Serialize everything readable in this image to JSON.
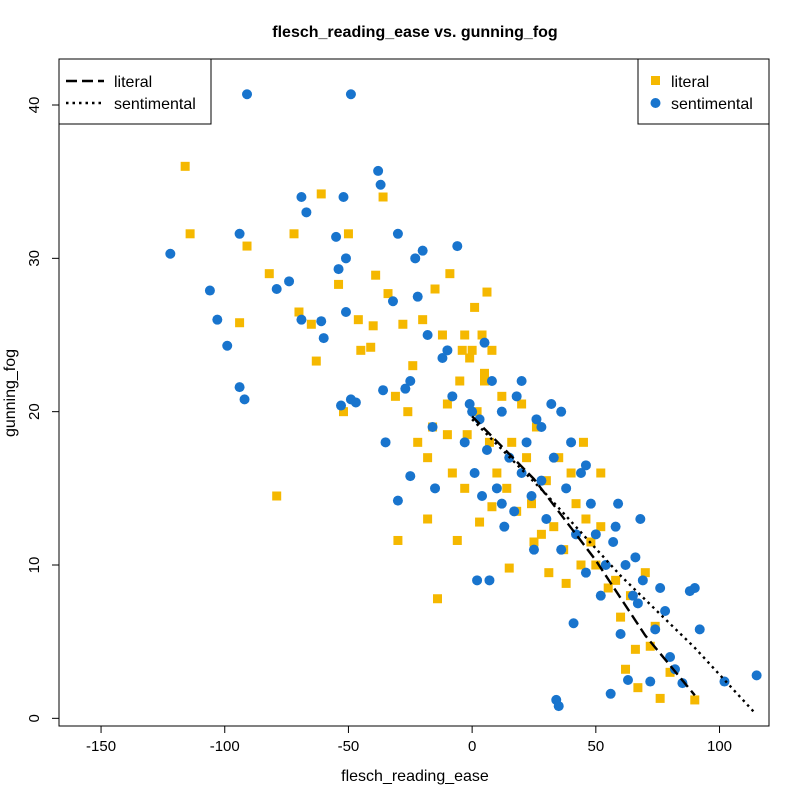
{
  "chart_data": {
    "type": "scatter",
    "title": "flesch_reading_ease vs. gunning_fog",
    "xlabel": "flesch_reading_ease",
    "ylabel": "gunning_fog",
    "xlim": [
      -167,
      120
    ],
    "ylim": [
      -0.5,
      43
    ],
    "xticks": [
      -150,
      -100,
      -50,
      0,
      50,
      100
    ],
    "yticks": [
      0,
      10,
      20,
      30,
      40
    ],
    "grid": false,
    "point_legend_position": "top-right",
    "line_legend_position": "top-left",
    "series": [
      {
        "name": "literal",
        "marker": "square",
        "color": "#F5B800",
        "points": [
          [
            -116,
            36
          ],
          [
            -114,
            31.6
          ],
          [
            -94,
            25.8
          ],
          [
            -91,
            30.8
          ],
          [
            -82,
            29
          ],
          [
            -79,
            14.5
          ],
          [
            -72,
            31.6
          ],
          [
            -70,
            26.5
          ],
          [
            -65,
            25.7
          ],
          [
            -63,
            23.3
          ],
          [
            -61,
            34.2
          ],
          [
            -54,
            28.3
          ],
          [
            -52,
            20
          ],
          [
            -50,
            31.6
          ],
          [
            -46,
            26
          ],
          [
            -45,
            24
          ],
          [
            -41,
            24.2
          ],
          [
            -40,
            25.6
          ],
          [
            -39,
            28.9
          ],
          [
            -36,
            34
          ],
          [
            -34,
            27.7
          ],
          [
            -31,
            21
          ],
          [
            -30,
            11.6
          ],
          [
            -28,
            25.7
          ],
          [
            -26,
            20
          ],
          [
            -24,
            23
          ],
          [
            -22,
            18
          ],
          [
            -20,
            26
          ],
          [
            -18,
            17
          ],
          [
            -16,
            19
          ],
          [
            -15,
            28
          ],
          [
            -14,
            7.8
          ],
          [
            -12,
            25
          ],
          [
            -10,
            20.5
          ],
          [
            -9,
            29
          ],
          [
            -8,
            16
          ],
          [
            -6,
            11.6
          ],
          [
            -5,
            22
          ],
          [
            -4,
            24
          ],
          [
            -3,
            25
          ],
          [
            -2,
            18.5
          ],
          [
            -1,
            23.5
          ],
          [
            0,
            24
          ],
          [
            1,
            26.8
          ],
          [
            2,
            20
          ],
          [
            3,
            12.8
          ],
          [
            4,
            25
          ],
          [
            5,
            22
          ],
          [
            6,
            27.8
          ],
          [
            7,
            18
          ],
          [
            8,
            24
          ],
          [
            10,
            16
          ],
          [
            12,
            21
          ],
          [
            14,
            15
          ],
          [
            16,
            18
          ],
          [
            18,
            13.5
          ],
          [
            20,
            20.5
          ],
          [
            22,
            17
          ],
          [
            24,
            14
          ],
          [
            26,
            19
          ],
          [
            28,
            12
          ],
          [
            30,
            15.5
          ],
          [
            31,
            9.5
          ],
          [
            33,
            12.5
          ],
          [
            35,
            17
          ],
          [
            37,
            11
          ],
          [
            40,
            16
          ],
          [
            42,
            14
          ],
          [
            44,
            10
          ],
          [
            46,
            13
          ],
          [
            48,
            11.5
          ],
          [
            50,
            10
          ],
          [
            52,
            12.5
          ],
          [
            55,
            8.5
          ],
          [
            58,
            9
          ],
          [
            60,
            6.6
          ],
          [
            62,
            3.2
          ],
          [
            64,
            8
          ],
          [
            66,
            4.5
          ],
          [
            67,
            2
          ],
          [
            70,
            9.5
          ],
          [
            72,
            4.7
          ],
          [
            74,
            6
          ],
          [
            76,
            1.3
          ],
          [
            80,
            3
          ],
          [
            90,
            1.2
          ],
          [
            -3,
            15
          ],
          [
            8,
            13.8
          ],
          [
            15,
            9.8
          ],
          [
            25,
            11.5
          ],
          [
            38,
            8.8
          ],
          [
            45,
            18
          ],
          [
            52,
            16
          ],
          [
            -18,
            13
          ],
          [
            -10,
            18.5
          ],
          [
            5,
            22.5
          ]
        ]
      },
      {
        "name": "sentimental",
        "marker": "circle",
        "color": "#1874CD",
        "points": [
          [
            -122,
            30.3
          ],
          [
            -106,
            27.9
          ],
          [
            -103,
            26
          ],
          [
            -99,
            24.3
          ],
          [
            -94,
            31.6
          ],
          [
            -94,
            21.6
          ],
          [
            -92,
            20.8
          ],
          [
            -91,
            40.7
          ],
          [
            -79,
            28
          ],
          [
            -74,
            28.5
          ],
          [
            -69,
            34
          ],
          [
            -69,
            26
          ],
          [
            -67,
            33
          ],
          [
            -61,
            25.9
          ],
          [
            -60,
            24.8
          ],
          [
            -55,
            31.4
          ],
          [
            -54,
            29.3
          ],
          [
            -53,
            20.4
          ],
          [
            -52,
            34
          ],
          [
            -51,
            26.5
          ],
          [
            -51,
            30
          ],
          [
            -49,
            40.7
          ],
          [
            -49,
            20.8
          ],
          [
            -47,
            20.6
          ],
          [
            -38,
            35.7
          ],
          [
            -37,
            34.8
          ],
          [
            -36,
            21.4
          ],
          [
            -35,
            18
          ],
          [
            -32,
            27.2
          ],
          [
            -30,
            31.6
          ],
          [
            -30,
            14.2
          ],
          [
            -27,
            21.5
          ],
          [
            -25,
            15.8
          ],
          [
            -23,
            30
          ],
          [
            -22,
            27.5
          ],
          [
            -20,
            30.5
          ],
          [
            -18,
            25
          ],
          [
            -16,
            19
          ],
          [
            -12,
            23.5
          ],
          [
            -8,
            21
          ],
          [
            -6,
            30.8
          ],
          [
            -3,
            18
          ],
          [
            -1,
            20.5
          ],
          [
            1,
            16
          ],
          [
            2,
            9
          ],
          [
            3,
            19.5
          ],
          [
            4,
            14.5
          ],
          [
            6,
            17.5
          ],
          [
            7,
            9
          ],
          [
            8,
            22
          ],
          [
            10,
            15
          ],
          [
            12,
            20
          ],
          [
            13,
            12.5
          ],
          [
            15,
            17
          ],
          [
            17,
            13.5
          ],
          [
            18,
            21
          ],
          [
            20,
            16
          ],
          [
            22,
            18
          ],
          [
            24,
            14.5
          ],
          [
            25,
            11
          ],
          [
            26,
            19.5
          ],
          [
            28,
            15.5
          ],
          [
            30,
            13
          ],
          [
            32,
            20.5
          ],
          [
            33,
            17
          ],
          [
            34,
            1.2
          ],
          [
            35,
            0.8
          ],
          [
            36,
            11
          ],
          [
            38,
            15
          ],
          [
            40,
            18
          ],
          [
            41,
            6.2
          ],
          [
            42,
            12
          ],
          [
            44,
            16
          ],
          [
            46,
            9.5
          ],
          [
            48,
            14
          ],
          [
            50,
            12
          ],
          [
            52,
            8
          ],
          [
            54,
            10
          ],
          [
            56,
            1.6
          ],
          [
            57,
            11.5
          ],
          [
            59,
            14
          ],
          [
            60,
            5.5
          ],
          [
            62,
            10
          ],
          [
            63,
            2.5
          ],
          [
            65,
            8
          ],
          [
            66,
            10.5
          ],
          [
            67,
            7.5
          ],
          [
            69,
            9
          ],
          [
            72,
            2.4
          ],
          [
            74,
            5.8
          ],
          [
            76,
            8.5
          ],
          [
            78,
            7
          ],
          [
            80,
            4
          ],
          [
            82,
            3.2
          ],
          [
            85,
            2.3
          ],
          [
            88,
            8.3
          ],
          [
            90,
            8.5
          ],
          [
            92,
            5.8
          ],
          [
            102,
            2.4
          ],
          [
            115,
            2.8
          ],
          [
            -15,
            15
          ],
          [
            0,
            20
          ],
          [
            12,
            14
          ],
          [
            28,
            19
          ],
          [
            46,
            16.5
          ],
          [
            58,
            12.5
          ],
          [
            68,
            13
          ],
          [
            -25,
            22
          ],
          [
            -10,
            24
          ],
          [
            5,
            24.5
          ],
          [
            20,
            22
          ],
          [
            36,
            20
          ]
        ]
      }
    ],
    "lines": [
      {
        "name": "literal",
        "style": "dashed",
        "points": [
          [
            0,
            19.7
          ],
          [
            25,
            15.6
          ],
          [
            50,
            10.3
          ],
          [
            70,
            5.4
          ],
          [
            90,
            1.5
          ]
        ]
      },
      {
        "name": "sentimental",
        "style": "dotted",
        "points": [
          [
            0,
            19.5
          ],
          [
            30,
            14.6
          ],
          [
            60,
            9.3
          ],
          [
            90,
            4.6
          ],
          [
            114,
            0.4
          ]
        ]
      }
    ]
  }
}
